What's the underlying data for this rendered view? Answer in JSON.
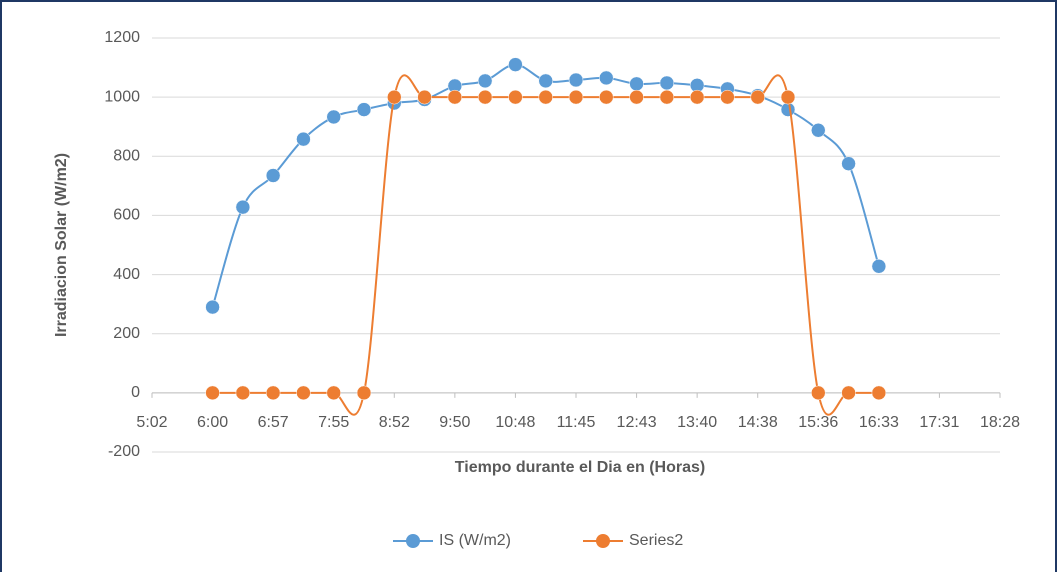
{
  "chart_data": {
    "type": "line",
    "xlabel": "Tiempo durante el Dia en (Horas)",
    "ylabel": "Irradiacion Solar (W/m2)",
    "x": [
      0.25,
      0.27,
      0.29,
      0.31,
      0.33,
      0.35,
      0.37,
      0.39,
      0.41,
      0.43,
      0.45,
      0.47,
      0.49,
      0.51,
      0.53,
      0.55,
      0.57,
      0.59,
      0.61,
      0.63,
      0.65,
      0.67,
      0.69
    ],
    "series": [
      {
        "name": "IS (W/m2)",
        "color": "#5b9bd5",
        "values": [
          290,
          628,
          735,
          858,
          933,
          958,
          980,
          992,
          1038,
          1055,
          1110,
          1055,
          1058,
          1065,
          1045,
          1048,
          1040,
          1028,
          1005,
          958,
          888,
          775,
          428
        ]
      },
      {
        "name": "Series2",
        "color": "#ed7d31",
        "values": [
          0,
          0,
          0,
          0,
          0,
          0,
          1000,
          1000,
          1000,
          1000,
          1000,
          1000,
          1000,
          1000,
          1000,
          1000,
          1000,
          1000,
          1000,
          1000,
          0,
          0,
          0
        ]
      }
    ],
    "xlim": [
      0.21,
      0.77
    ],
    "xticks": [
      {
        "value": 0.21,
        "label": "5:02"
      },
      {
        "value": 0.25,
        "label": "6:00"
      },
      {
        "value": 0.29,
        "label": "6:57"
      },
      {
        "value": 0.33,
        "label": "7:55"
      },
      {
        "value": 0.37,
        "label": "8:52"
      },
      {
        "value": 0.41,
        "label": "9:50"
      },
      {
        "value": 0.45,
        "label": "10:48"
      },
      {
        "value": 0.49,
        "label": "11:45"
      },
      {
        "value": 0.53,
        "label": "12:43"
      },
      {
        "value": 0.57,
        "label": "13:40"
      },
      {
        "value": 0.61,
        "label": "14:38"
      },
      {
        "value": 0.65,
        "label": "15:36"
      },
      {
        "value": 0.69,
        "label": "16:33"
      },
      {
        "value": 0.73,
        "label": "17:31"
      },
      {
        "value": 0.77,
        "label": "18:28"
      }
    ],
    "ylim": [
      -200,
      1200
    ],
    "yticks": [
      -200,
      0,
      200,
      400,
      600,
      800,
      1000,
      1200
    ],
    "grid": true,
    "smooth": true,
    "legend": "bottom"
  }
}
